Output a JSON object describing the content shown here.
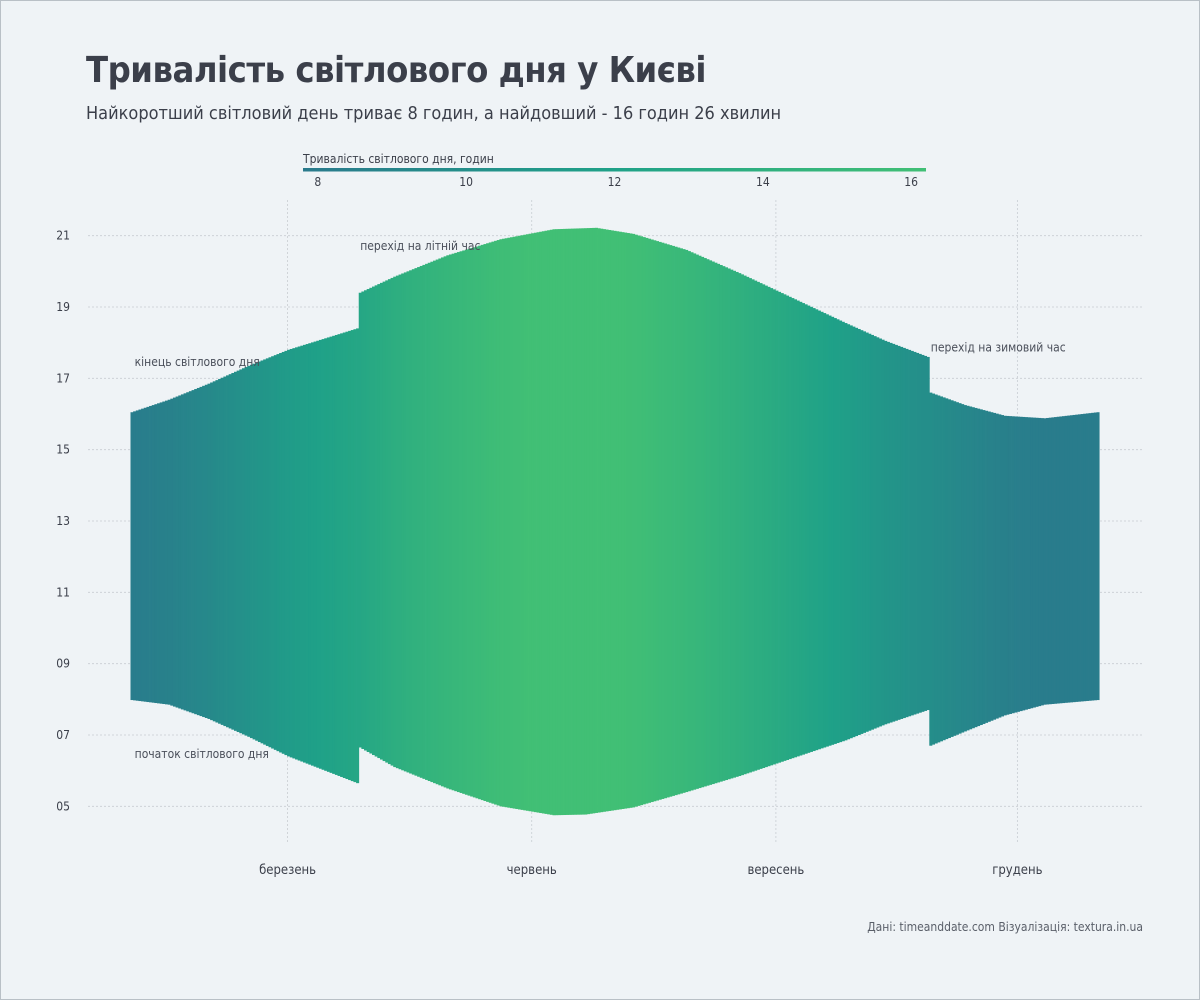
{
  "title": "Тривалість світлового дня у Києві",
  "subtitle": "Найкоротший світловий день триває 8 годин, а найдовший - 16 годин 26 хвилин",
  "caption": "Дані: timeanddate.com Візуалізація: textura.in.ua",
  "colors": {
    "low": "#2a7a8c",
    "mid": "#1fa188",
    "high": "#41bf75",
    "grid": "#c8cdd2",
    "text": "#3b3f4a"
  },
  "chart_data": {
    "type": "area",
    "x_unit": "day of year",
    "y_unit": "hour of day",
    "ylim": [
      4,
      22
    ],
    "yticks": [
      5,
      7,
      9,
      11,
      13,
      15,
      17,
      19,
      21
    ],
    "ytick_labels": [
      "05",
      "07",
      "09",
      "11",
      "13",
      "15",
      "17",
      "19",
      "21"
    ],
    "xlim": [
      1,
      365
    ],
    "xticks": [
      {
        "label": "березень",
        "day": 60
      },
      {
        "label": "червень",
        "day": 152
      },
      {
        "label": "вересень",
        "day": 244
      },
      {
        "label": "грудень",
        "day": 335
      }
    ],
    "daylight_range_hours": [
      8,
      16.43
    ],
    "series": [
      {
        "name": "початок світлового дня",
        "points": [
          [
            1,
            7.98
          ],
          [
            15,
            7.85
          ],
          [
            30,
            7.45
          ],
          [
            45,
            6.95
          ],
          [
            60,
            6.4
          ],
          [
            86,
            5.65
          ],
          [
            87,
            6.65
          ],
          [
            100,
            6.1
          ],
          [
            120,
            5.5
          ],
          [
            140,
            5.0
          ],
          [
            160,
            4.75
          ],
          [
            172,
            4.77
          ],
          [
            190,
            4.97
          ],
          [
            210,
            5.4
          ],
          [
            230,
            5.85
          ],
          [
            250,
            6.35
          ],
          [
            270,
            6.85
          ],
          [
            285,
            7.3
          ],
          [
            301,
            7.7
          ],
          [
            302,
            6.7
          ],
          [
            315,
            7.1
          ],
          [
            330,
            7.55
          ],
          [
            345,
            7.85
          ],
          [
            365,
            7.98
          ]
        ]
      },
      {
        "name": "кінець світлового дня",
        "points": [
          [
            1,
            16.05
          ],
          [
            15,
            16.4
          ],
          [
            30,
            16.85
          ],
          [
            45,
            17.35
          ],
          [
            60,
            17.8
          ],
          [
            86,
            18.4
          ],
          [
            87,
            19.4
          ],
          [
            100,
            19.85
          ],
          [
            120,
            20.45
          ],
          [
            140,
            20.9
          ],
          [
            160,
            21.18
          ],
          [
            176,
            21.22
          ],
          [
            190,
            21.05
          ],
          [
            210,
            20.6
          ],
          [
            230,
            19.95
          ],
          [
            250,
            19.25
          ],
          [
            270,
            18.55
          ],
          [
            285,
            18.05
          ],
          [
            301,
            17.6
          ],
          [
            302,
            16.6
          ],
          [
            315,
            16.25
          ],
          [
            330,
            15.95
          ],
          [
            345,
            15.88
          ],
          [
            365,
            16.05
          ]
        ]
      }
    ],
    "annotations": [
      {
        "text": "кінець світлового дня",
        "day": 2,
        "hour": 17.35
      },
      {
        "text": "початок світлового дня",
        "day": 2,
        "hour": 6.35
      },
      {
        "text": "перехід на літній час",
        "day": 87,
        "hour": 20.6
      },
      {
        "text": "перехід на зимовий час",
        "day": 302,
        "hour": 17.75
      }
    ],
    "legend": {
      "title": "Тривалість світлового дня, годин",
      "ticks": [
        8,
        10,
        12,
        14,
        16
      ],
      "range": [
        7.8,
        16.2
      ],
      "position": "top-center"
    }
  }
}
